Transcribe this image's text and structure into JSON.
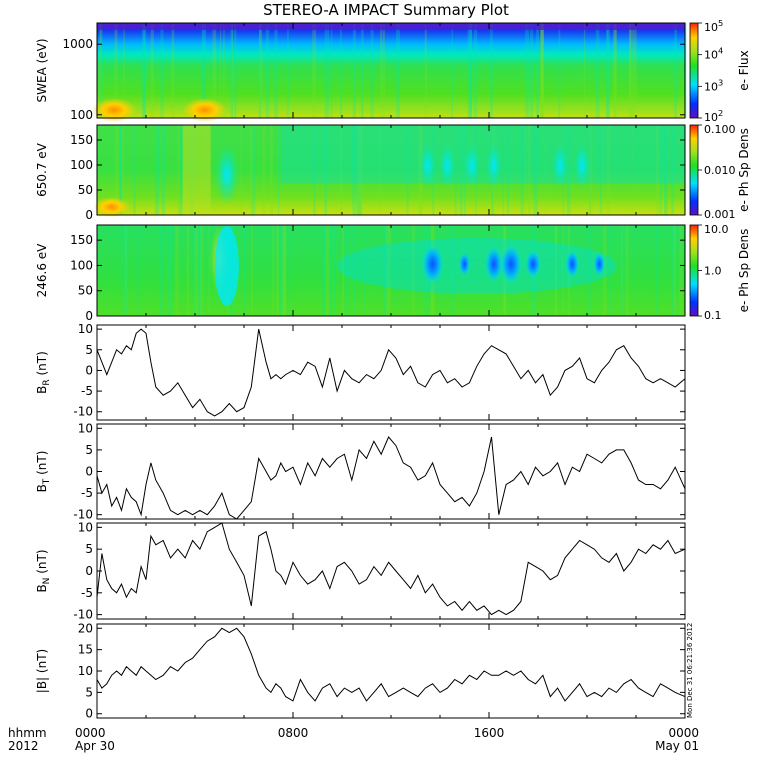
{
  "title": "STEREO-A IMPACT Summary Plot",
  "time_axis": {
    "ticks": [
      {
        "hour": 0,
        "label": "0000",
        "sublabel": "Apr 30"
      },
      {
        "hour": 8,
        "label": "0800",
        "sublabel": ""
      },
      {
        "hour": 16,
        "label": "1600",
        "sublabel": ""
      },
      {
        "hour": 24,
        "label": "0000",
        "sublabel": "May 01"
      }
    ],
    "corner_label_1": "hhmm",
    "corner_label_2": "2012",
    "range_hours": [
      0,
      24
    ]
  },
  "timestamp": "Mon Dec 31 06:21:36 2012",
  "chart_data": [
    {
      "type": "heatmap",
      "ylabel": "SWEA (eV)",
      "yscale": "log",
      "ylim": [
        90,
        2000
      ],
      "yticks": [
        {
          "v": 1000,
          "label": "1000"
        },
        {
          "v": 100,
          "label": "100"
        }
      ],
      "colorbar": {
        "label": "e- Flux",
        "scale": "log",
        "ticks": [
          {
            "v": 100000,
            "label": "10^5"
          },
          {
            "v": 10000,
            "label": "10^4"
          },
          {
            "v": 1000,
            "label": "10^3"
          },
          {
            "v": 100,
            "label": "10^2"
          }
        ]
      },
      "description_colors": [
        "#5a10c8",
        "#0a3cf0",
        "#00d8f0",
        "#30e830",
        "#9be020",
        "#ffd000",
        "#ff6000"
      ]
    },
    {
      "type": "heatmap",
      "ylabel": "650.7 eV",
      "ylim": [
        0,
        180
      ],
      "yticks": [
        {
          "v": 150,
          "label": "150"
        },
        {
          "v": 100,
          "label": "100"
        },
        {
          "v": 50,
          "label": "50"
        },
        {
          "v": 0,
          "label": "0"
        }
      ],
      "colorbar": {
        "label": "e- Ph Sp Dens",
        "scale": "log",
        "ticks": [
          {
            "v": 0.1,
            "label": "0.100"
          },
          {
            "v": 0.01,
            "label": "0.010"
          },
          {
            "v": 0.001,
            "label": "0.001"
          }
        ]
      }
    },
    {
      "type": "heatmap",
      "ylabel": "246.6 eV",
      "ylim": [
        0,
        180
      ],
      "yticks": [
        {
          "v": 150,
          "label": "150"
        },
        {
          "v": 100,
          "label": "100"
        },
        {
          "v": 50,
          "label": "50"
        },
        {
          "v": 0,
          "label": "0"
        }
      ],
      "colorbar": {
        "label": "e- Ph Sp Dens",
        "scale": "log",
        "ticks": [
          {
            "v": 10,
            "label": "10.0"
          },
          {
            "v": 1,
            "label": "1.0"
          },
          {
            "v": 0.1,
            "label": "0.1"
          }
        ]
      }
    },
    {
      "type": "line",
      "ylabel": "B",
      "ylabel_sub": "R",
      "ylabel_unit": "(nT)",
      "ylim": [
        -12,
        11
      ],
      "yticks": [
        10,
        5,
        0,
        -5,
        -10
      ],
      "x": [
        0,
        0.2,
        0.4,
        0.6,
        0.8,
        1.0,
        1.2,
        1.4,
        1.6,
        1.8,
        2.0,
        2.2,
        2.4,
        2.7,
        3.0,
        3.3,
        3.6,
        3.9,
        4.2,
        4.5,
        4.8,
        5.1,
        5.4,
        5.7,
        6.0,
        6.3,
        6.6,
        6.9,
        7.1,
        7.3,
        7.5,
        7.7,
        8.0,
        8.3,
        8.6,
        8.9,
        9.2,
        9.5,
        9.8,
        10.1,
        10.4,
        10.7,
        11.0,
        11.3,
        11.6,
        11.9,
        12.2,
        12.5,
        12.8,
        13.1,
        13.4,
        13.7,
        14.0,
        14.3,
        14.6,
        14.9,
        15.2,
        15.5,
        15.8,
        16.1,
        16.4,
        16.7,
        17.0,
        17.3,
        17.6,
        17.9,
        18.2,
        18.5,
        18.8,
        19.1,
        19.4,
        19.7,
        20.0,
        20.3,
        20.6,
        20.9,
        21.2,
        21.5,
        21.8,
        22.1,
        22.4,
        22.7,
        23.0,
        23.3,
        23.6,
        24.0
      ],
      "values": [
        5,
        2,
        -1,
        2,
        5,
        4,
        6,
        5,
        9,
        10,
        9,
        2,
        -4,
        -6,
        -5,
        -3,
        -6,
        -9,
        -7,
        -10,
        -11,
        -10,
        -8,
        -10,
        -9,
        -4,
        10,
        2,
        -2,
        -1,
        -2,
        -1,
        0,
        -1,
        2,
        1,
        -4,
        3,
        -5,
        0,
        -2,
        -3,
        -1,
        -2,
        0,
        5,
        3,
        -1,
        1,
        -3,
        -4,
        -1,
        0,
        -3,
        -2,
        -4,
        -3,
        1,
        4,
        6,
        5,
        4,
        1,
        -2,
        0,
        -3,
        -1,
        -6,
        -4,
        0,
        1,
        3,
        -2,
        -3,
        0,
        2,
        5,
        6,
        3,
        1,
        -2,
        -3,
        -2,
        -3,
        -4,
        -2
      ]
    },
    {
      "type": "line",
      "ylabel": "B",
      "ylabel_sub": "T",
      "ylabel_unit": "(nT)",
      "ylim": [
        -11,
        11
      ],
      "yticks": [
        10,
        5,
        0,
        -5,
        -10
      ],
      "x": [
        0,
        0.2,
        0.4,
        0.6,
        0.8,
        1.0,
        1.2,
        1.4,
        1.6,
        1.8,
        2.0,
        2.2,
        2.4,
        2.7,
        3.0,
        3.3,
        3.6,
        3.9,
        4.2,
        4.5,
        4.8,
        5.1,
        5.4,
        5.7,
        6.0,
        6.3,
        6.6,
        6.9,
        7.1,
        7.3,
        7.5,
        7.7,
        8.0,
        8.3,
        8.6,
        8.9,
        9.2,
        9.5,
        9.8,
        10.1,
        10.4,
        10.7,
        11.0,
        11.3,
        11.6,
        11.9,
        12.2,
        12.5,
        12.8,
        13.1,
        13.4,
        13.7,
        14.0,
        14.3,
        14.6,
        14.9,
        15.2,
        15.5,
        15.8,
        16.1,
        16.4,
        16.7,
        17.0,
        17.3,
        17.6,
        17.9,
        18.2,
        18.5,
        18.8,
        19.1,
        19.4,
        19.7,
        20.0,
        20.3,
        20.6,
        20.9,
        21.2,
        21.5,
        21.8,
        22.1,
        22.4,
        22.7,
        23.0,
        23.3,
        23.6,
        24.0
      ],
      "values": [
        -1,
        -5,
        -3,
        -8,
        -6,
        -9,
        -4,
        -6,
        -7,
        -10,
        -3,
        2,
        -2,
        -5,
        -9,
        -10,
        -9,
        -10,
        -9,
        -10,
        -8,
        -5,
        -10,
        -11,
        -9,
        -7,
        3,
        0,
        -2,
        -1,
        2,
        0,
        1,
        -3,
        2,
        -1,
        3,
        1,
        3,
        4,
        -2,
        5,
        3,
        7,
        4,
        8,
        6,
        2,
        1,
        -2,
        -1,
        2,
        -3,
        -5,
        -7,
        -6,
        -8,
        -5,
        0,
        8,
        -10,
        -3,
        -2,
        0,
        -3,
        1,
        -1,
        0,
        2,
        -3,
        1,
        0,
        4,
        3,
        2,
        4,
        5,
        5,
        2,
        -2,
        -3,
        -3,
        -4,
        -2,
        1,
        -4
      ]
    },
    {
      "type": "line",
      "ylabel": "B",
      "ylabel_sub": "N",
      "ylabel_unit": "(nT)",
      "ylim": [
        -11,
        11
      ],
      "yticks": [
        10,
        5,
        0,
        -5,
        -10
      ],
      "x": [
        0,
        0.2,
        0.4,
        0.6,
        0.8,
        1.0,
        1.2,
        1.4,
        1.6,
        1.8,
        2.0,
        2.2,
        2.4,
        2.7,
        3.0,
        3.3,
        3.6,
        3.9,
        4.2,
        4.5,
        4.8,
        5.1,
        5.4,
        5.7,
        6.0,
        6.3,
        6.6,
        6.9,
        7.1,
        7.3,
        7.5,
        7.7,
        8.0,
        8.3,
        8.6,
        8.9,
        9.2,
        9.5,
        9.8,
        10.1,
        10.4,
        10.7,
        11.0,
        11.3,
        11.6,
        11.9,
        12.2,
        12.5,
        12.8,
        13.1,
        13.4,
        13.7,
        14.0,
        14.3,
        14.6,
        14.9,
        15.2,
        15.5,
        15.8,
        16.1,
        16.4,
        16.7,
        17.0,
        17.3,
        17.6,
        17.9,
        18.2,
        18.5,
        18.8,
        19.1,
        19.4,
        19.7,
        20.0,
        20.3,
        20.6,
        20.9,
        21.2,
        21.5,
        21.8,
        22.1,
        22.4,
        22.7,
        23.0,
        23.3,
        23.6,
        24.0
      ],
      "values": [
        -6,
        4,
        -2,
        -4,
        -5,
        -3,
        -6,
        -4,
        -5,
        1,
        -2,
        8,
        6,
        7,
        3,
        5,
        3,
        7,
        5,
        9,
        10,
        11,
        5,
        2,
        -1,
        -8,
        8,
        9,
        5,
        0,
        -1,
        -3,
        2,
        -1,
        -3,
        -2,
        0,
        -4,
        1,
        2,
        0,
        -3,
        -2,
        1,
        -1,
        2,
        0,
        -2,
        -4,
        -1,
        -5,
        -3,
        -6,
        -8,
        -7,
        -9,
        -7,
        -9,
        -8,
        -10,
        -9,
        -10,
        -9,
        -7,
        2,
        1,
        0,
        -2,
        -1,
        3,
        5,
        7,
        6,
        5,
        3,
        2,
        4,
        0,
        2,
        5,
        4,
        6,
        5,
        7,
        4,
        5
      ]
    },
    {
      "type": "line",
      "ylabel": "|B| (nT)",
      "ylim": [
        -1,
        21
      ],
      "yticks": [
        20,
        15,
        10,
        5,
        0
      ],
      "x": [
        0,
        0.2,
        0.4,
        0.6,
        0.8,
        1.0,
        1.2,
        1.4,
        1.6,
        1.8,
        2.0,
        2.2,
        2.4,
        2.7,
        3.0,
        3.3,
        3.6,
        3.9,
        4.2,
        4.5,
        4.8,
        5.1,
        5.4,
        5.7,
        6.0,
        6.3,
        6.6,
        6.9,
        7.1,
        7.3,
        7.5,
        7.7,
        8.0,
        8.3,
        8.6,
        8.9,
        9.2,
        9.5,
        9.8,
        10.1,
        10.4,
        10.7,
        11.0,
        11.3,
        11.6,
        11.9,
        12.2,
        12.5,
        12.8,
        13.1,
        13.4,
        13.7,
        14.0,
        14.3,
        14.6,
        14.9,
        15.2,
        15.5,
        15.8,
        16.1,
        16.4,
        16.7,
        17.0,
        17.3,
        17.6,
        17.9,
        18.2,
        18.5,
        18.8,
        19.1,
        19.4,
        19.7,
        20.0,
        20.3,
        20.6,
        20.9,
        21.2,
        21.5,
        21.8,
        22.1,
        22.4,
        22.7,
        23.0,
        23.3,
        23.6,
        24.0
      ],
      "values": [
        8,
        6,
        7,
        9,
        10,
        9,
        11,
        10,
        9,
        11,
        10,
        9,
        8,
        9,
        11,
        10,
        12,
        13,
        15,
        17,
        18,
        20,
        19,
        20,
        18,
        14,
        9,
        6,
        5,
        7,
        6,
        4,
        3,
        8,
        5,
        3,
        6,
        7,
        4,
        6,
        5,
        6,
        3,
        5,
        7,
        4,
        5,
        6,
        5,
        4,
        6,
        7,
        5,
        6,
        8,
        7,
        9,
        8,
        10,
        9,
        9,
        10,
        9,
        10,
        8,
        7,
        9,
        4,
        6,
        3,
        5,
        7,
        4,
        5,
        4,
        6,
        5,
        7,
        8,
        6,
        5,
        4,
        7,
        6,
        5,
        4
      ]
    }
  ]
}
